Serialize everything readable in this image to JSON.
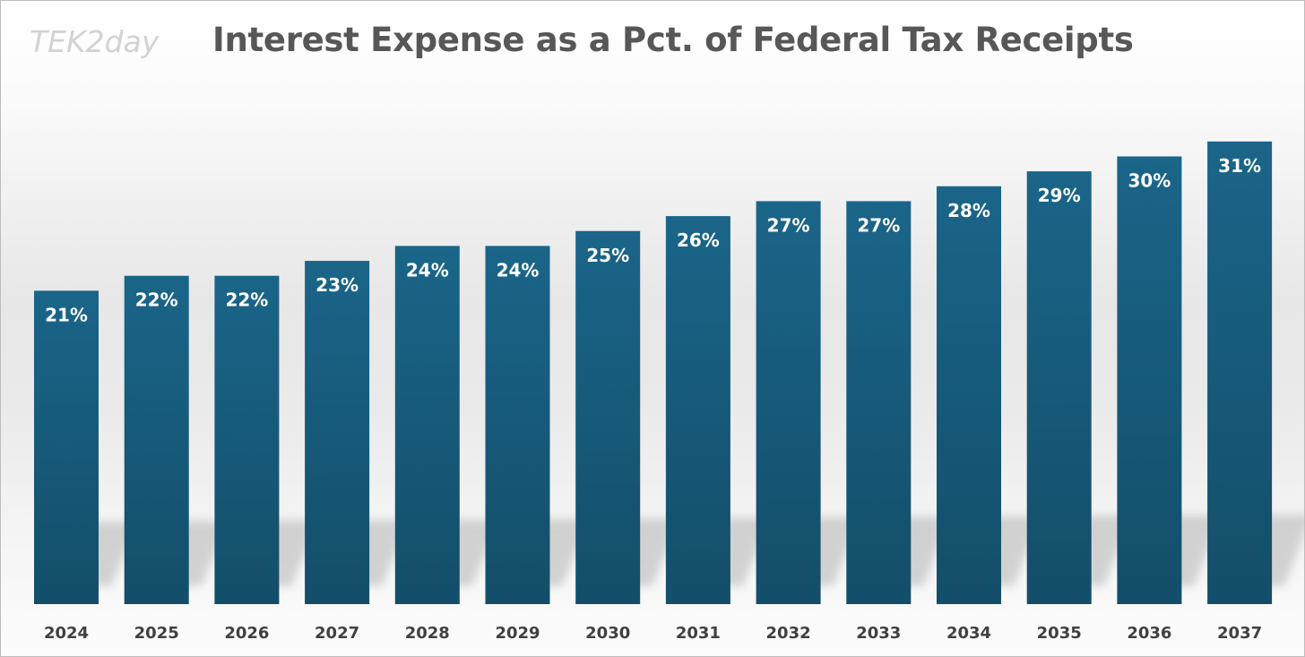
{
  "logo": "TEK2day",
  "chart_data": {
    "type": "bar",
    "title": "Interest Expense as a Pct. of Federal Tax Receipts",
    "categories": [
      "2024",
      "2025",
      "2026",
      "2027",
      "2028",
      "2029",
      "2030",
      "2031",
      "2032",
      "2033",
      "2034",
      "2035",
      "2036",
      "2037"
    ],
    "values": [
      21,
      22,
      22,
      23,
      24,
      24,
      25,
      26,
      27,
      27,
      28,
      29,
      30,
      31
    ],
    "data_labels": [
      "21%",
      "22%",
      "22%",
      "23%",
      "24%",
      "24%",
      "25%",
      "26%",
      "27%",
      "27%",
      "28%",
      "29%",
      "30%",
      "31%"
    ],
    "xlabel": "",
    "ylabel": "",
    "grid": false,
    "legend": "none",
    "bar_color": "#165a78",
    "bar_color_top": "#1a6589",
    "bar_color_bottom": "#134e69",
    "label_color": "#ffffff",
    "tick_color": "#404040"
  }
}
